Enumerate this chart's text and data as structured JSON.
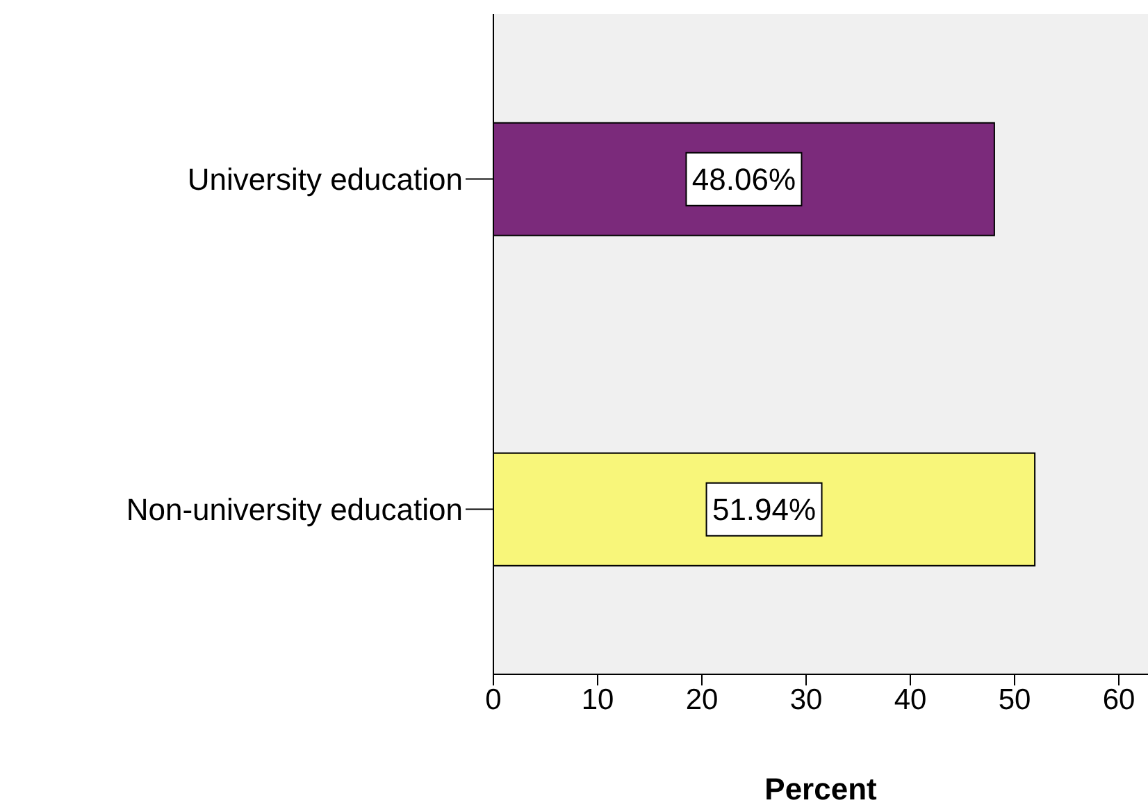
{
  "chart_data": {
    "type": "bar",
    "orientation": "horizontal",
    "categories": [
      "University education",
      "Non-university education"
    ],
    "values": [
      48.06,
      51.94
    ],
    "colors": [
      "#7b2a7b",
      "#f8f67a"
    ],
    "value_labels": [
      "48.06%",
      "51.94%"
    ],
    "xlabel": "Percent",
    "xlim": [
      0,
      62.8
    ],
    "xticks": [
      0,
      10,
      20,
      30,
      40,
      50,
      60
    ],
    "grid": false
  }
}
